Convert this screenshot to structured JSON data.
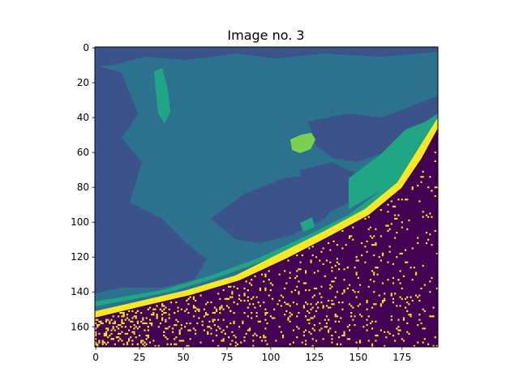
{
  "chart_data": {
    "type": "heatmap",
    "title": "Image no. 3",
    "xlabel": "",
    "ylabel": "",
    "image_shape": [
      172,
      196
    ],
    "xlim": [
      -0.5,
      195.5
    ],
    "ylim": [
      171.5,
      -0.5
    ],
    "xticks": [
      0,
      25,
      50,
      75,
      100,
      125,
      150,
      175
    ],
    "yticks": [
      0,
      20,
      40,
      60,
      80,
      100,
      120,
      140,
      160
    ],
    "colormap": "viridis",
    "class_colors": {
      "dark_purple": "#440154",
      "indigo": "#3b528b",
      "teal": "#2c728e",
      "green": "#21a685",
      "light_green": "#7ad151",
      "yellow": "#fde725"
    },
    "regions": [
      {
        "name": "ocean",
        "color": "#2c728e"
      },
      {
        "name": "cloud-patches",
        "color": "#3b528b"
      },
      {
        "name": "coastal-band",
        "color": "#21a685"
      },
      {
        "name": "island",
        "color": "#7ad151"
      },
      {
        "name": "shoreline",
        "color": "#fde725"
      },
      {
        "name": "land",
        "color": "#440154"
      }
    ],
    "grid": false,
    "legend": "none"
  }
}
